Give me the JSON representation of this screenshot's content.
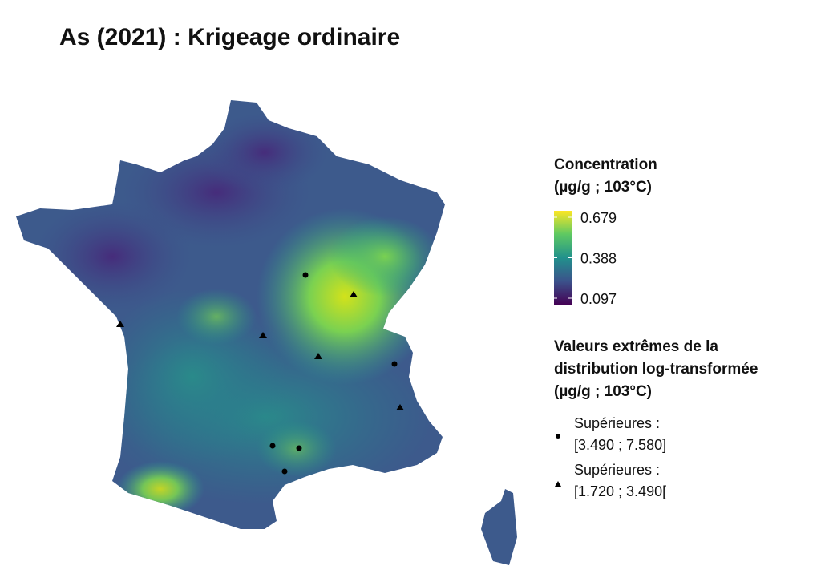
{
  "title": "As (2021) : Krigeage ordinaire",
  "colorbar": {
    "title_lines": [
      "Concentration",
      "(µg/g ; 103°C)"
    ],
    "ticks": [
      0.679,
      0.388,
      0.097
    ]
  },
  "points_legend": {
    "title_lines": [
      "Valeurs extrêmes de la",
      "distribution log-transformée",
      "(µg/g ; 103°C)"
    ],
    "items": [
      {
        "lines": [
          "Supérieures :",
          "[3.490 ; 7.580]"
        ]
      },
      {
        "lines": [
          "Supérieures :",
          "[1.720 ; 3.490["
        ]
      }
    ]
  }
}
